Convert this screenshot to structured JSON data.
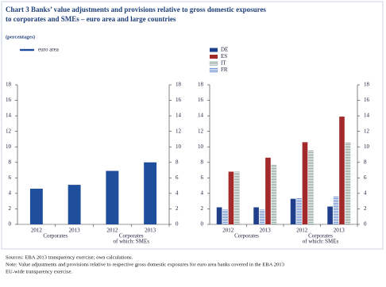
{
  "title": [
    "Chart 3 Banks’ value adjustments and provisions relative to gross domestic exposures",
    "to corporates and SMEs – euro area and large countries"
  ],
  "unit": "(percentages)",
  "notes": {
    "sources": "Sources: EBA 2013 transparency exercise; own calculations.",
    "note": [
      "Note: Value adjustments and provisions relative to respective gross domestic exposures for euro area banks covered in the EBA 2013",
      "EU-wide transparency exercise."
    ]
  },
  "chart_data": [
    {
      "type": "bar",
      "categories": [
        "2012",
        "2013",
        "2012",
        "2013"
      ],
      "groups": [
        [
          "Corporates"
        ],
        [
          "Corporates",
          "of which: SMEs"
        ]
      ],
      "series": [
        {
          "name": "euro area",
          "color": "#1f4e9c",
          "values": [
            4.6,
            5.1,
            6.9,
            8.0
          ]
        }
      ],
      "ylim": [
        0,
        18
      ],
      "yticks": [
        0,
        2,
        4,
        6,
        8,
        10,
        12,
        14,
        16,
        18
      ],
      "y2lim": [
        0,
        18
      ],
      "y2ticks": [
        0,
        2,
        4,
        6,
        8,
        10,
        12,
        14,
        16,
        18
      ]
    },
    {
      "type": "bar",
      "categories": [
        "2012",
        "2013",
        "2012",
        "2013"
      ],
      "groups": [
        [
          "Corporates"
        ],
        [
          "Corporates",
          "of which: SMEs"
        ]
      ],
      "series": [
        {
          "name": "DE",
          "color": "#1f3f8c",
          "values": [
            2.2,
            2.2,
            3.3,
            2.3
          ]
        },
        {
          "name": "ES",
          "color": "#a32a2a",
          "values": [
            6.8,
            8.6,
            10.6,
            13.9
          ]
        },
        {
          "name": "IT",
          "color": "#8fa49b",
          "pattern": "hatch",
          "values": [
            6.8,
            7.7,
            9.6,
            10.6
          ]
        },
        {
          "name": "FR",
          "color": "#6f92d2",
          "pattern": "hatch",
          "values": [
            1.9,
            1.9,
            3.4,
            3.6
          ]
        }
      ],
      "ylim": [
        0,
        18
      ],
      "yticks": [
        0,
        2,
        4,
        6,
        8,
        10,
        12,
        14,
        16,
        18
      ],
      "y2lim": [
        0,
        18
      ],
      "y2ticks": [
        0,
        2,
        4,
        6,
        8,
        10,
        12,
        14,
        16,
        18
      ]
    }
  ]
}
